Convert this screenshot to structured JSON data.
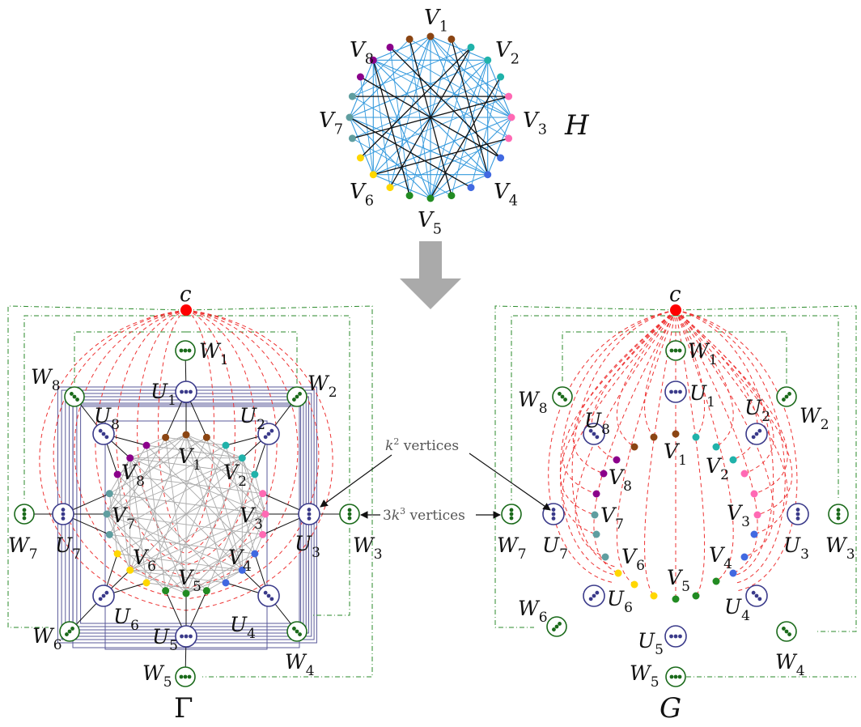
{
  "labels": {
    "h": "H",
    "gamma": "Γ",
    "g": "G",
    "c": "c",
    "v_letter": "V",
    "u_letter": "U",
    "w_letter": "W",
    "k2_text": "k² vertices",
    "k2_k": "k",
    "k2_exp": "2",
    "k2_rest": " vertices",
    "k3_text": "3k³ vertices",
    "k3_3": "3",
    "k3_k": "k",
    "k3_exp": "3",
    "k3_rest": " vertices"
  },
  "indices": [
    "1",
    "2",
    "3",
    "4",
    "5",
    "6",
    "7",
    "8"
  ],
  "colors": {
    "group": [
      "#8b4513",
      "#20b2aa",
      "#ff69b4",
      "#4169e1",
      "#228b22",
      "#ffd700",
      "#5f9ea0",
      "#8b008b"
    ],
    "h_edge": "#3399dd",
    "h_bold_edge": "#111111",
    "gamma_edge": "#aaaaaa",
    "u_node": "#3a3a8a",
    "w_node": "#1a6a1a",
    "c_node": "#ff0000",
    "red_dash": "#ee3333",
    "green_dash": "#2a8a2a",
    "frame": "#5a5a9a",
    "arrow": "#aaaaaa",
    "orange": "#ff8c00"
  }
}
